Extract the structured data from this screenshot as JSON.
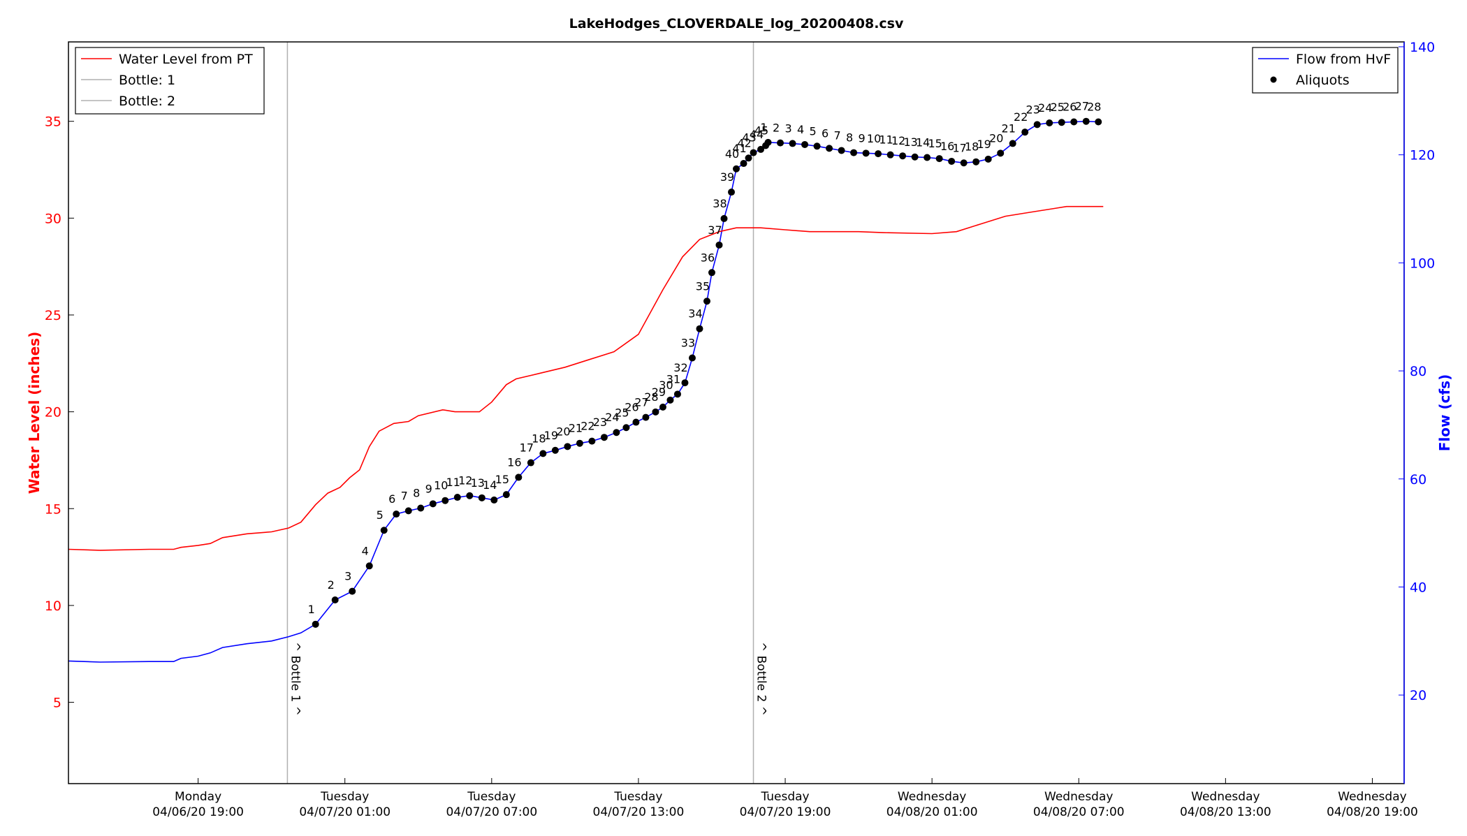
{
  "chart_data": {
    "type": "line",
    "title": "LakeHodges_CLOVERDALE_log_20200408.csv",
    "ylabel_left": "Water Level (inches)",
    "ylabel_right": "Flow (cfs)",
    "ylim_left": [
      0.8,
      39.1
    ],
    "ylim_right": [
      3.6,
      140.9
    ],
    "xlim_hours": [
      -5.3,
      49.3
    ],
    "yticks_left": [
      5,
      10,
      15,
      20,
      25,
      30,
      35
    ],
    "yticks_right": [
      20,
      40,
      60,
      80,
      100,
      120,
      140
    ],
    "xticks": [
      {
        "line1": "Monday",
        "line2": "04/06/20 19:00",
        "h": 0
      },
      {
        "line1": "Tuesday",
        "line2": "04/07/20 01:00",
        "h": 6
      },
      {
        "line1": "Tuesday",
        "line2": "04/07/20 07:00",
        "h": 12
      },
      {
        "line1": "Tuesday",
        "line2": "04/07/20 13:00",
        "h": 18
      },
      {
        "line1": "Tuesday",
        "line2": "04/07/20 19:00",
        "h": 24
      },
      {
        "line1": "Wednesday",
        "line2": "04/08/20 01:00",
        "h": 30
      },
      {
        "line1": "Wednesday",
        "line2": "04/08/20 07:00",
        "h": 36
      },
      {
        "line1": "Wednesday",
        "line2": "04/08/20 13:00",
        "h": 42
      },
      {
        "line1": "Wednesday",
        "line2": "04/08/20 19:00",
        "h": 48
      }
    ],
    "grid": false,
    "legend_left": {
      "placement": "top-left",
      "entries": [
        {
          "label": "Water Level from PT",
          "color": "#ff0000"
        },
        {
          "label": "Bottle: 1",
          "color": "#b0b0b0"
        },
        {
          "label": "Bottle: 2",
          "color": "#b0b0b0"
        }
      ]
    },
    "legend_right": {
      "placement": "top-right",
      "entries": [
        {
          "label": "Flow from HvF",
          "color": "#0000ff"
        },
        {
          "label": "Aliquots",
          "color": "#000000"
        }
      ]
    },
    "bottles": [
      {
        "label": "^ Bottle 1 ^",
        "h": 3.65
      },
      {
        "label": "^ Bottle 2 ^",
        "h": 22.7
      }
    ],
    "series": [
      {
        "name": "Water Level from PT",
        "axis": "left",
        "color": "#ff0000",
        "x": [
          -5.3,
          -4,
          -2,
          -1,
          -0.7,
          0,
          0.5,
          1,
          2,
          3,
          3.7,
          4.2,
          4.8,
          5.3,
          5.8,
          6.2,
          6.6,
          7,
          7.4,
          8,
          8.6,
          9,
          10,
          10.5,
          11.5,
          12,
          12.6,
          13,
          14,
          15,
          16,
          17,
          18,
          19,
          19.8,
          20.5,
          21.3,
          22,
          22.5,
          23,
          24,
          25,
          27,
          28,
          30,
          31,
          32,
          33,
          34,
          35,
          35.5,
          36,
          37
        ],
        "y": [
          12.9,
          12.85,
          12.9,
          12.9,
          13.0,
          13.1,
          13.2,
          13.5,
          13.7,
          13.8,
          14.0,
          14.3,
          15.2,
          15.8,
          16.1,
          16.6,
          17.0,
          18.2,
          19.0,
          19.4,
          19.5,
          19.8,
          20.1,
          20.0,
          20.0,
          20.5,
          21.4,
          21.7,
          22.0,
          22.3,
          22.7,
          23.1,
          24.0,
          26.3,
          28.0,
          28.9,
          29.3,
          29.5,
          29.5,
          29.5,
          29.4,
          29.3,
          29.3,
          29.25,
          29.2,
          29.3,
          29.7,
          30.1,
          30.3,
          30.5,
          30.6,
          30.6,
          30.6
        ]
      },
      {
        "name": "Flow from HvF",
        "axis": "right",
        "color": "#0000ff",
        "x": [
          -5.3,
          -4,
          -2,
          -1,
          -0.7,
          0,
          0.5,
          1,
          2,
          3,
          3.7,
          4.2
        ],
        "y": [
          26.3,
          26.1,
          26.2,
          26.2,
          26.8,
          27.2,
          27.8,
          28.8,
          29.5,
          30.0,
          30.8,
          31.5
        ]
      }
    ],
    "aliquots_bottle1": {
      "labels": [
        "1",
        "2",
        "3",
        "4",
        "5",
        "6",
        "7",
        "8",
        "9",
        "10",
        "11",
        "12",
        "13",
        "14",
        "15",
        "16",
        "17",
        "18",
        "19",
        "20",
        "21",
        "22",
        "23",
        "24",
        "25",
        "26",
        "27",
        "28",
        "29",
        "30",
        "31",
        "32",
        "33",
        "34",
        "35",
        "36",
        "37",
        "38",
        "39",
        "40",
        "41",
        "42",
        "43",
        "44",
        "45"
      ],
      "x": [
        4.8,
        5.6,
        6.3,
        7.0,
        7.6,
        8.1,
        8.6,
        9.1,
        9.6,
        10.1,
        10.6,
        11.1,
        11.6,
        12.1,
        12.6,
        13.1,
        13.6,
        14.1,
        14.6,
        15.1,
        15.6,
        16.1,
        16.6,
        17.1,
        17.5,
        17.9,
        18.3,
        18.7,
        19.0,
        19.3,
        19.6,
        19.9,
        20.2,
        20.5,
        20.8,
        21.0,
        21.3,
        21.5,
        21.8,
        22.0,
        22.3,
        22.5,
        22.7,
        23.0,
        23.2
      ],
      "y": [
        33.1,
        37.6,
        39.2,
        43.9,
        50.5,
        53.5,
        54.1,
        54.6,
        55.4,
        56.0,
        56.6,
        56.9,
        56.5,
        56.1,
        57.1,
        60.3,
        63.0,
        64.7,
        65.3,
        66.0,
        66.6,
        67.0,
        67.7,
        68.6,
        69.5,
        70.5,
        71.4,
        72.4,
        73.3,
        74.6,
        75.7,
        77.8,
        82.4,
        87.8,
        92.9,
        98.2,
        103.3,
        108.2,
        113.1,
        117.4,
        118.4,
        119.4,
        120.4,
        121.0,
        121.7
      ]
    },
    "aliquots_bottle2": {
      "labels": [
        "1",
        "2",
        "3",
        "4",
        "5",
        "6",
        "7",
        "8",
        "9",
        "10",
        "11",
        "12",
        "13",
        "14",
        "15",
        "16",
        "17",
        "18",
        "19",
        "20",
        "21",
        "22",
        "23",
        "24",
        "25",
        "26",
        "27",
        "28"
      ],
      "x": [
        23.3,
        23.8,
        24.3,
        24.8,
        25.3,
        25.8,
        26.3,
        26.8,
        27.3,
        27.8,
        28.3,
        28.8,
        29.3,
        29.8,
        30.3,
        30.8,
        31.3,
        31.8,
        32.3,
        32.8,
        33.3,
        33.8,
        34.3,
        34.8,
        35.3,
        35.8,
        36.3,
        36.8
      ],
      "y": [
        122.3,
        122.2,
        122.1,
        121.9,
        121.6,
        121.2,
        120.8,
        120.4,
        120.3,
        120.2,
        120.0,
        119.8,
        119.6,
        119.5,
        119.3,
        118.8,
        118.5,
        118.7,
        119.2,
        120.3,
        122.1,
        124.2,
        125.6,
        125.9,
        126.0,
        126.1,
        126.2,
        126.1
      ]
    }
  }
}
